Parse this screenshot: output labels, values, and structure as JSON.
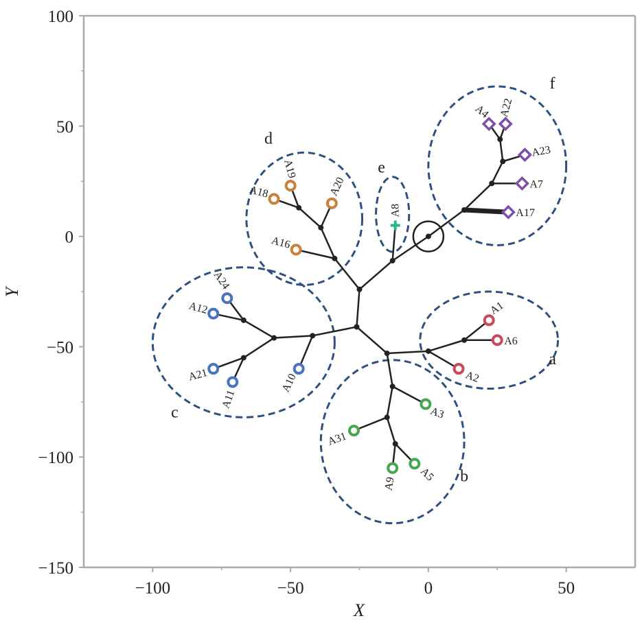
{
  "chart_data": {
    "type": "scatter",
    "title": "",
    "xlabel": "X",
    "ylabel": "Y",
    "xlim": [
      -125,
      75
    ],
    "ylim": [
      -150,
      100
    ],
    "xticks": [
      -100,
      -50,
      0,
      50
    ],
    "xtick_labels": [
      "−100",
      "−50",
      "0",
      "50"
    ],
    "yticks": [
      -150,
      -100,
      -50,
      0,
      50,
      100
    ],
    "ytick_labels": [
      "−150",
      "−100",
      "−50",
      "0",
      "50",
      "100"
    ],
    "grid": false,
    "colors": {
      "a": "#c94a5c",
      "b": "#4aa552",
      "c": "#4a74bd",
      "d": "#c9813d",
      "e": "#2bb58e",
      "f": "#7d4fa8",
      "edge": "#222222",
      "ellipse": "#2f4f7f",
      "axis": "#aaaaaa"
    },
    "root": {
      "x": 0,
      "y": 0
    },
    "internal_nodes": [
      {
        "id": "root",
        "x": 0,
        "y": 0
      },
      {
        "id": "n1",
        "x": -13,
        "y": -11
      },
      {
        "id": "n2",
        "x": -25,
        "y": -24
      },
      {
        "id": "n3",
        "x": -26,
        "y": -41
      },
      {
        "id": "n4",
        "x": -15,
        "y": -53
      },
      {
        "id": "n5",
        "x": 0,
        "y": -52
      },
      {
        "id": "n6",
        "x": 13,
        "y": -47
      },
      {
        "id": "n7",
        "x": -13,
        "y": -68
      },
      {
        "id": "n8",
        "x": -15,
        "y": -82
      },
      {
        "id": "n9",
        "x": -12,
        "y": -94
      },
      {
        "id": "n10",
        "x": -42,
        "y": -45
      },
      {
        "id": "n11",
        "x": -56,
        "y": -46
      },
      {
        "id": "n12",
        "x": -67,
        "y": -38
      },
      {
        "id": "n13",
        "x": -67,
        "y": -55
      },
      {
        "id": "n14",
        "x": -34,
        "y": -10
      },
      {
        "id": "n15",
        "x": -39,
        "y": 4
      },
      {
        "id": "n16",
        "x": -47,
        "y": 13
      },
      {
        "id": "n17",
        "x": 13,
        "y": 12
      },
      {
        "id": "n18",
        "x": 23,
        "y": 24
      },
      {
        "id": "n19",
        "x": 27,
        "y": 34
      },
      {
        "id": "n20",
        "x": 26,
        "y": 44
      }
    ],
    "leaves": [
      {
        "name": "A1",
        "cluster": "a",
        "marker": "circle",
        "x": 22,
        "y": -38
      },
      {
        "name": "A6",
        "cluster": "a",
        "marker": "circle",
        "x": 25,
        "y": -47
      },
      {
        "name": "A2",
        "cluster": "a",
        "marker": "circle",
        "x": 11,
        "y": -60
      },
      {
        "name": "A3",
        "cluster": "b",
        "marker": "circle",
        "x": -1,
        "y": -76
      },
      {
        "name": "A31",
        "cluster": "b",
        "marker": "circle",
        "x": -27,
        "y": -88
      },
      {
        "name": "A5",
        "cluster": "b",
        "marker": "circle",
        "x": -5,
        "y": -103
      },
      {
        "name": "A9",
        "cluster": "b",
        "marker": "circle",
        "x": -13,
        "y": -105
      },
      {
        "name": "A24",
        "cluster": "c",
        "marker": "circle",
        "x": -73,
        "y": -28
      },
      {
        "name": "A12",
        "cluster": "c",
        "marker": "circle",
        "x": -78,
        "y": -35
      },
      {
        "name": "A21",
        "cluster": "c",
        "marker": "circle",
        "x": -78,
        "y": -60
      },
      {
        "name": "A11",
        "cluster": "c",
        "marker": "circle",
        "x": -71,
        "y": -66
      },
      {
        "name": "A10",
        "cluster": "c",
        "marker": "circle",
        "x": -47,
        "y": -60
      },
      {
        "name": "A18",
        "cluster": "d",
        "marker": "circle",
        "x": -56,
        "y": 17
      },
      {
        "name": "A19",
        "cluster": "d",
        "marker": "circle",
        "x": -50,
        "y": 23
      },
      {
        "name": "A20",
        "cluster": "d",
        "marker": "circle",
        "x": -35,
        "y": 15
      },
      {
        "name": "A16",
        "cluster": "d",
        "marker": "circle",
        "x": -48,
        "y": -6
      },
      {
        "name": "A8",
        "cluster": "e",
        "marker": "plus",
        "x": -12,
        "y": 5
      },
      {
        "name": "A4",
        "cluster": "f",
        "marker": "diamond",
        "x": 22,
        "y": 51
      },
      {
        "name": "A22",
        "cluster": "f",
        "marker": "diamond",
        "x": 28,
        "y": 51
      },
      {
        "name": "A23",
        "cluster": "f",
        "marker": "diamond",
        "x": 35,
        "y": 37
      },
      {
        "name": "A7",
        "cluster": "f",
        "marker": "diamond",
        "x": 34,
        "y": 24
      },
      {
        "name": "A17",
        "cluster": "f",
        "marker": "diamond",
        "x": 29,
        "y": 11
      }
    ],
    "edges": [
      [
        "root",
        "n1"
      ],
      [
        "n1",
        "A8"
      ],
      [
        "n1",
        "n2"
      ],
      [
        "n2",
        "n3"
      ],
      [
        "n2",
        "n14"
      ],
      [
        "n3",
        "n4"
      ],
      [
        "n3",
        "n10"
      ],
      [
        "n4",
        "n5"
      ],
      [
        "n5",
        "A2"
      ],
      [
        "n5",
        "n6"
      ],
      [
        "n6",
        "A1"
      ],
      [
        "n6",
        "A6"
      ],
      [
        "n4",
        "n7"
      ],
      [
        "n7",
        "A3"
      ],
      [
        "n7",
        "n8"
      ],
      [
        "n8",
        "A31"
      ],
      [
        "n8",
        "n9"
      ],
      [
        "n9",
        "A9"
      ],
      [
        "n9",
        "A5"
      ],
      [
        "n10",
        "A10"
      ],
      [
        "n10",
        "n11"
      ],
      [
        "n11",
        "n12"
      ],
      [
        "n12",
        "A24"
      ],
      [
        "n12",
        "A12"
      ],
      [
        "n11",
        "n13"
      ],
      [
        "n13",
        "A21"
      ],
      [
        "n13",
        "A11"
      ],
      [
        "n14",
        "A16"
      ],
      [
        "n14",
        "n15"
      ],
      [
        "n15",
        "A20"
      ],
      [
        "n15",
        "n16"
      ],
      [
        "n16",
        "A18"
      ],
      [
        "n16",
        "A19"
      ],
      [
        "root",
        "n17"
      ],
      [
        "n17",
        "A17"
      ],
      [
        "n17",
        "n18"
      ],
      [
        "n18",
        "A7"
      ],
      [
        "n18",
        "n19"
      ],
      [
        "n19",
        "A23"
      ],
      [
        "n19",
        "n20"
      ],
      [
        "n20",
        "A4"
      ],
      [
        "n20",
        "A22"
      ]
    ],
    "thick_edges": [
      [
        "n17",
        "A17"
      ]
    ],
    "clusters": [
      {
        "label": "a",
        "cx": 22,
        "cy": -47,
        "rx": 25,
        "ry": 22,
        "label_x": 45,
        "label_y": -58
      },
      {
        "label": "b",
        "cx": -13,
        "cy": -93,
        "rx": 26,
        "ry": 37,
        "label_x": 13,
        "label_y": -111
      },
      {
        "label": "c",
        "cx": -67,
        "cy": -48,
        "rx": 33,
        "ry": 34,
        "label_x": -92,
        "label_y": -82
      },
      {
        "label": "d",
        "cx": -45,
        "cy": 8,
        "rx": 21,
        "ry": 30,
        "label_x": -58,
        "label_y": 42
      },
      {
        "label": "e",
        "cx": -13,
        "cy": 10,
        "rx": 6,
        "ry": 17,
        "label_x": -17,
        "label_y": 29
      },
      {
        "label": "f",
        "cx": 25,
        "cy": 32,
        "rx": 25,
        "ry": 36,
        "label_x": 45,
        "label_y": 67
      }
    ]
  }
}
